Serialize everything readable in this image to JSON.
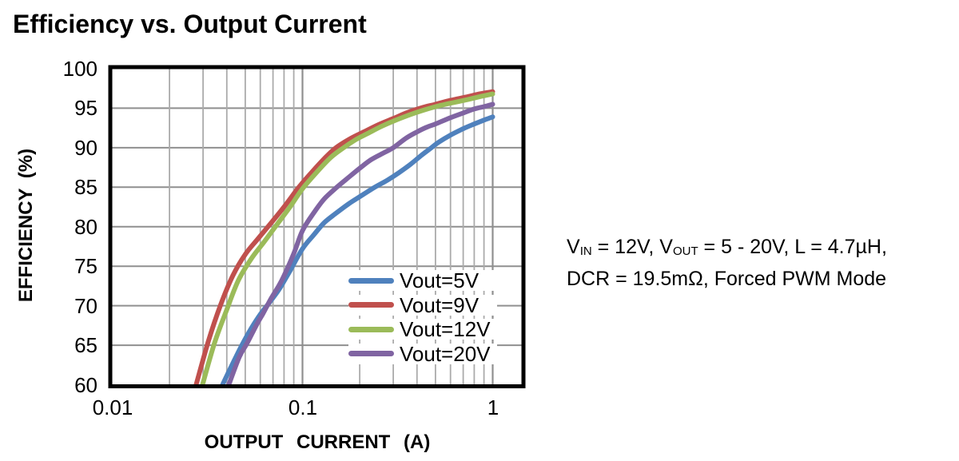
{
  "title": "Efficiency vs. Output Current",
  "axis": {
    "y_title": "EFFICIENCY  (%)",
    "x_title": "OUTPUT  CURRENT  (A)"
  },
  "annotation": {
    "line1_parts": [
      {
        "t": "V"
      },
      {
        "s": "IN"
      },
      {
        "t": " = 12V, V"
      },
      {
        "s": "OUT"
      },
      {
        "t": " = 5 - 20V, L = 4.7µH,"
      }
    ],
    "line2": "DCR = 19.5mΩ, Forced PWM Mode"
  },
  "colors": {
    "grid_minor": "#ababab",
    "grid_major": "#8f8f8f",
    "frame": "#000000"
  },
  "chart_data": {
    "type": "line",
    "title": "Efficiency vs. Output Current",
    "xlabel": "OUTPUT CURRENT (A)",
    "ylabel": "EFFICIENCY (%)",
    "x_scale": "log",
    "xlim": [
      0.01,
      1.45
    ],
    "ylim": [
      60,
      100
    ],
    "grid": "on",
    "legend_position": "inside-lower-right",
    "x_ticks": [
      {
        "value": 0.01,
        "label": "0.01"
      },
      {
        "value": 0.1,
        "label": "0.1"
      },
      {
        "value": 1,
        "label": "1"
      }
    ],
    "y_ticks": [
      {
        "value": 100,
        "label": "100"
      },
      {
        "value": 95,
        "label": "95"
      },
      {
        "value": 90,
        "label": "90"
      },
      {
        "value": 85,
        "label": "85"
      },
      {
        "value": 80,
        "label": "80"
      },
      {
        "value": 75,
        "label": "75"
      },
      {
        "value": 70,
        "label": "70"
      },
      {
        "value": 65,
        "label": "65"
      },
      {
        "value": 60,
        "label": "60"
      }
    ],
    "series": [
      {
        "name": "Vout=5V",
        "color": "#4F81BD",
        "points": [
          [
            0.038,
            60
          ],
          [
            0.043,
            62.7
          ],
          [
            0.048,
            65
          ],
          [
            0.054,
            67.2
          ],
          [
            0.06,
            68.9
          ],
          [
            0.067,
            70.4
          ],
          [
            0.075,
            72
          ],
          [
            0.085,
            74.2
          ],
          [
            0.1,
            77.2
          ],
          [
            0.115,
            79
          ],
          [
            0.13,
            80.5
          ],
          [
            0.15,
            81.7
          ],
          [
            0.175,
            82.9
          ],
          [
            0.2,
            83.8
          ],
          [
            0.24,
            85
          ],
          [
            0.28,
            85.9
          ],
          [
            0.32,
            86.8
          ],
          [
            0.37,
            87.9
          ],
          [
            0.42,
            89
          ],
          [
            0.47,
            89.9
          ],
          [
            0.52,
            90.7
          ],
          [
            0.6,
            91.6
          ],
          [
            0.7,
            92.4
          ],
          [
            0.8,
            93
          ],
          [
            0.9,
            93.5
          ],
          [
            1,
            93.9
          ]
        ]
      },
      {
        "name": "Vout=9V",
        "color": "#C0504D",
        "points": [
          [
            0.0276,
            60
          ],
          [
            0.032,
            65.5
          ],
          [
            0.037,
            70
          ],
          [
            0.043,
            73.8
          ],
          [
            0.05,
            76.5
          ],
          [
            0.058,
            78.4
          ],
          [
            0.068,
            80.4
          ],
          [
            0.08,
            82.5
          ],
          [
            0.095,
            84.9
          ],
          [
            0.11,
            86.7
          ],
          [
            0.13,
            88.6
          ],
          [
            0.15,
            90
          ],
          [
            0.18,
            91.2
          ],
          [
            0.21,
            92
          ],
          [
            0.25,
            92.9
          ],
          [
            0.3,
            93.7
          ],
          [
            0.36,
            94.5
          ],
          [
            0.43,
            95.1
          ],
          [
            0.5,
            95.5
          ],
          [
            0.6,
            96
          ],
          [
            0.72,
            96.4
          ],
          [
            0.85,
            96.8
          ],
          [
            1,
            97.1
          ]
        ]
      },
      {
        "name": "Vout=12V",
        "color": "#9BBB59",
        "points": [
          [
            0.0298,
            60
          ],
          [
            0.0345,
            65.3
          ],
          [
            0.04,
            69.5
          ],
          [
            0.046,
            73.2
          ],
          [
            0.054,
            76
          ],
          [
            0.063,
            78.1
          ],
          [
            0.073,
            80.2
          ],
          [
            0.086,
            82.5
          ],
          [
            0.1,
            84.8
          ],
          [
            0.12,
            87
          ],
          [
            0.14,
            88.7
          ],
          [
            0.16,
            89.8
          ],
          [
            0.19,
            91
          ],
          [
            0.22,
            91.8
          ],
          [
            0.26,
            92.7
          ],
          [
            0.31,
            93.5
          ],
          [
            0.37,
            94.2
          ],
          [
            0.44,
            94.8
          ],
          [
            0.52,
            95.3
          ],
          [
            0.62,
            95.7
          ],
          [
            0.74,
            96.1
          ],
          [
            0.87,
            96.5
          ],
          [
            1,
            96.8
          ]
        ]
      },
      {
        "name": "Vout=20V",
        "color": "#8064A2",
        "points": [
          [
            0.041,
            60
          ],
          [
            0.0465,
            63.5
          ],
          [
            0.051,
            65.2
          ],
          [
            0.058,
            67.8
          ],
          [
            0.062,
            69
          ],
          [
            0.068,
            70.8
          ],
          [
            0.075,
            72.5
          ],
          [
            0.08,
            73.8
          ],
          [
            0.09,
            76.6
          ],
          [
            0.1,
            79.5
          ],
          [
            0.115,
            81.8
          ],
          [
            0.13,
            83.5
          ],
          [
            0.15,
            84.9
          ],
          [
            0.17,
            86
          ],
          [
            0.2,
            87.4
          ],
          [
            0.23,
            88.5
          ],
          [
            0.27,
            89.4
          ],
          [
            0.3,
            90
          ],
          [
            0.35,
            91.2
          ],
          [
            0.4,
            92
          ],
          [
            0.45,
            92.6
          ],
          [
            0.5,
            93
          ],
          [
            0.6,
            93.8
          ],
          [
            0.7,
            94.4
          ],
          [
            0.8,
            94.9
          ],
          [
            0.9,
            95.2
          ],
          [
            1,
            95.5
          ]
        ]
      }
    ]
  }
}
